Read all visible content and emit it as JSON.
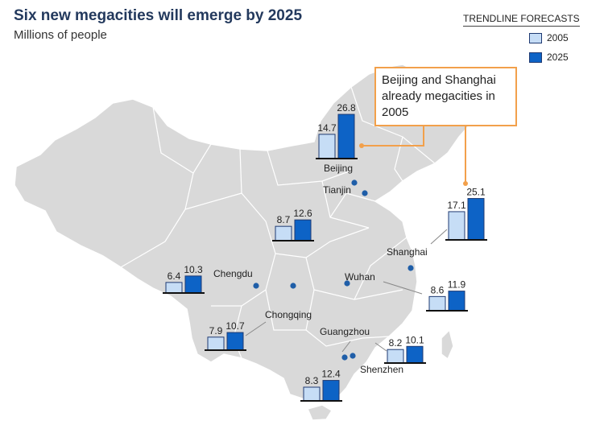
{
  "header": {
    "title": "Six new megacities will emerge by 2025",
    "subtitle": "Millions of people"
  },
  "legend": {
    "title": "TRENDLINE FORECASTS",
    "items": [
      {
        "label": "2005",
        "color": "#c6ddf6"
      },
      {
        "label": "2025",
        "color": "#0d63c6"
      }
    ]
  },
  "callout": {
    "text": "Beijing and Shanghai already megacities in 2005",
    "color": "#f2a04b"
  },
  "colors": {
    "map_fill": "#d9d9d9",
    "map_border": "#ffffff",
    "city_dot": "#1f5ea8",
    "bar_2005": "#c6ddf6",
    "bar_2025": "#0d63c6",
    "bar_outline": "#1f3a72"
  },
  "chart_data": {
    "type": "bar",
    "series_names": [
      "2005",
      "2025"
    ],
    "cities": [
      {
        "name": "Beijing",
        "values": [
          14.7,
          26.8
        ]
      },
      {
        "name": "Tianjin",
        "values": [
          8.7,
          12.6
        ]
      },
      {
        "name": "Shanghai",
        "values": [
          17.1,
          25.1
        ]
      },
      {
        "name": "Chengdu",
        "values": [
          6.4,
          10.3
        ]
      },
      {
        "name": "Chongqing",
        "values": [
          7.9,
          10.7
        ]
      },
      {
        "name": "Wuhan",
        "values": [
          8.6,
          11.9
        ]
      },
      {
        "name": "Guangzhou",
        "values": [
          8.2,
          10.1
        ]
      },
      {
        "name": "Shenzhen",
        "values": [
          8.3,
          12.4
        ]
      }
    ]
  }
}
